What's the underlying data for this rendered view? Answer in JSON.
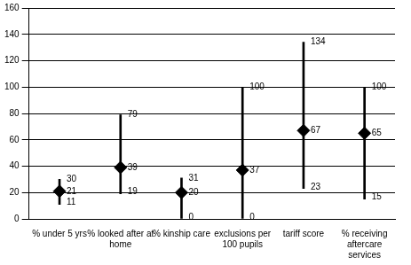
{
  "chart_data": {
    "type": "range",
    "categories": [
      "% under 5 yrs",
      "% looked after at home",
      "% kinship care",
      "exclusions per 100 pupils",
      "tariff score",
      "% receiving aftercare services"
    ],
    "values": [
      21,
      39,
      20,
      37,
      67,
      65
    ],
    "low": [
      11,
      19,
      0,
      0,
      23,
      15
    ],
    "high": [
      30,
      79,
      31,
      100,
      134,
      100
    ],
    "color": "#000000",
    "marker": "diamond",
    "ylim": [
      0,
      160
    ],
    "yticks": [
      0,
      20,
      40,
      60,
      80,
      100,
      120,
      140,
      160
    ],
    "grid": true,
    "data_labels": true
  }
}
